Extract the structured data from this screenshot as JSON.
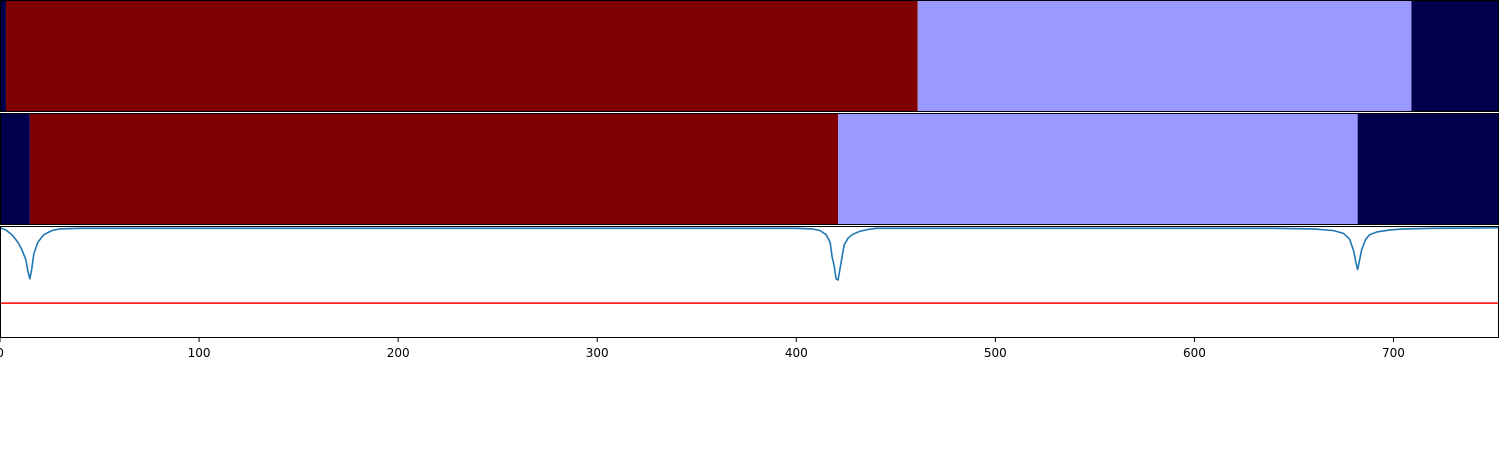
{
  "chart_data": [
    {
      "type": "heatmap",
      "title": "",
      "segments": [
        {
          "start": 0,
          "end": 3,
          "color": "#00004c"
        },
        {
          "start": 3,
          "end": 461,
          "color": "#7f0000"
        },
        {
          "start": 461,
          "end": 709,
          "color": "#9999ff"
        },
        {
          "start": 709,
          "end": 753,
          "color": "#00004c"
        }
      ]
    },
    {
      "type": "heatmap",
      "title": "",
      "segments": [
        {
          "start": 0,
          "end": 15,
          "color": "#00004c"
        },
        {
          "start": 15,
          "end": 421,
          "color": "#7f0000"
        },
        {
          "start": 421,
          "end": 682,
          "color": "#9999ff"
        },
        {
          "start": 682,
          "end": 753,
          "color": "#00004c"
        }
      ]
    },
    {
      "type": "line",
      "title": "",
      "xlabel": "",
      "ylabel": "",
      "xlim": [
        0,
        753
      ],
      "ylim": [
        -1.9,
        0.03
      ],
      "xticks": [
        0,
        100,
        200,
        300,
        400,
        500,
        600,
        700
      ],
      "line_color": "#1f77b4",
      "threshold": {
        "value": -1.3,
        "color": "#ff0000"
      },
      "series": [
        {
          "x": [
            0,
            3,
            6,
            9,
            11,
            13,
            14,
            15,
            16,
            17,
            19,
            22,
            26,
            30,
            40,
            50,
            60,
            80,
            100,
            150,
            200,
            250,
            300,
            350,
            380,
            400,
            408,
            412,
            415,
            417,
            418,
            419,
            420,
            421,
            422,
            423,
            424,
            426,
            428,
            432,
            436,
            440,
            450,
            500,
            550,
            600,
            640,
            660,
            670,
            675,
            678,
            680,
            681,
            682,
            683,
            684,
            686,
            688,
            692,
            698,
            705,
            720,
            740,
            753
          ],
          "y": [
            0.0,
            -0.04,
            -0.12,
            -0.25,
            -0.38,
            -0.55,
            -0.75,
            -0.88,
            -0.7,
            -0.45,
            -0.25,
            -0.12,
            -0.05,
            -0.02,
            -0.01,
            -0.01,
            -0.01,
            -0.01,
            -0.01,
            -0.01,
            -0.01,
            -0.01,
            -0.01,
            -0.01,
            -0.01,
            -0.01,
            -0.02,
            -0.05,
            -0.12,
            -0.25,
            -0.5,
            -0.65,
            -0.88,
            -0.9,
            -0.7,
            -0.5,
            -0.3,
            -0.18,
            -0.12,
            -0.06,
            -0.03,
            -0.01,
            -0.01,
            -0.01,
            -0.01,
            -0.01,
            -0.01,
            -0.02,
            -0.05,
            -0.1,
            -0.2,
            -0.4,
            -0.58,
            -0.72,
            -0.55,
            -0.38,
            -0.2,
            -0.12,
            -0.07,
            -0.04,
            -0.02,
            -0.01,
            -0.005,
            0.0
          ]
        }
      ]
    }
  ]
}
